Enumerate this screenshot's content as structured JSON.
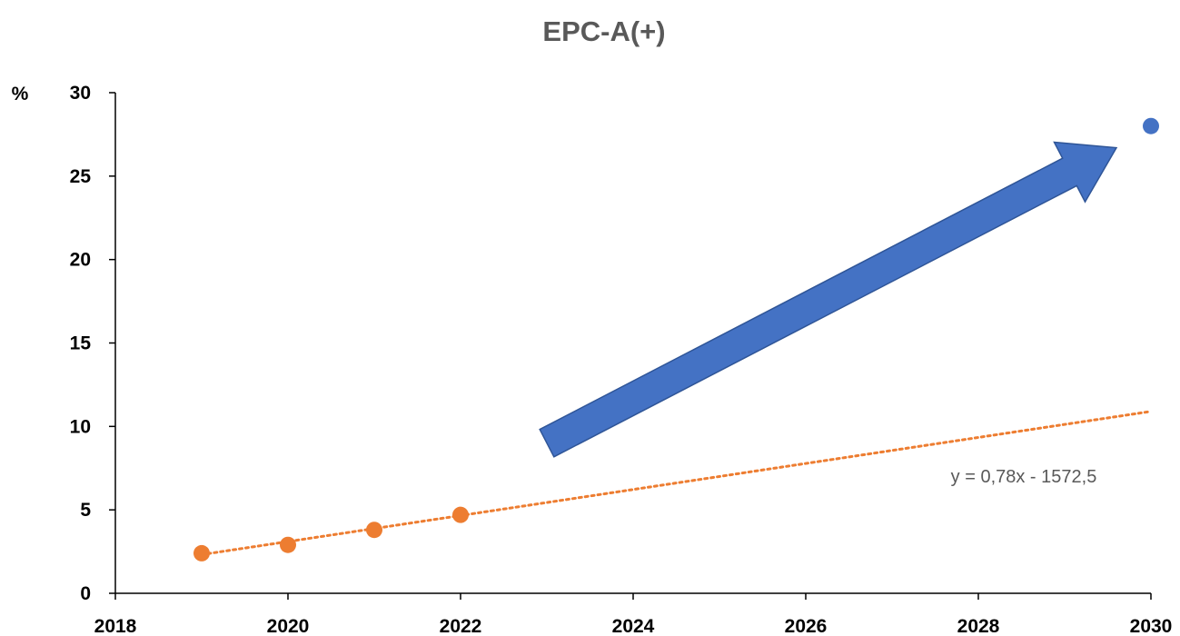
{
  "chart_data": {
    "type": "scatter",
    "title": "EPC-A(+)",
    "ylabel": "%",
    "xlabel": "",
    "xlim": [
      2018,
      2030
    ],
    "ylim": [
      0,
      30
    ],
    "x_ticks": [
      2018,
      2020,
      2022,
      2024,
      2026,
      2028,
      2030
    ],
    "y_ticks": [
      0,
      5,
      10,
      15,
      20,
      25,
      30
    ],
    "grid": false,
    "series": [
      {
        "color": "#ED7D31",
        "points": [
          {
            "x": 2019,
            "y": 2.4
          },
          {
            "x": 2020,
            "y": 2.9
          },
          {
            "x": 2021,
            "y": 3.8
          },
          {
            "x": 2022,
            "y": 4.7
          }
        ]
      },
      {
        "color": "#4472C4",
        "points": [
          {
            "x": 2030,
            "y": 28
          }
        ]
      }
    ],
    "trendline": {
      "type": "linear",
      "color": "#ED7D31",
      "style": "dotted",
      "slope": 0.78,
      "intercept": -1572.5,
      "x_range": [
        2019,
        2030
      ],
      "equation_label": "y = 0,78x - 1572,5"
    },
    "annotations": [
      {
        "type": "arrow",
        "color": "#4472C4",
        "from": {
          "x": 2023.0,
          "y": 9.0
        },
        "to": {
          "x": 2029.6,
          "y": 26.7
        }
      }
    ]
  }
}
